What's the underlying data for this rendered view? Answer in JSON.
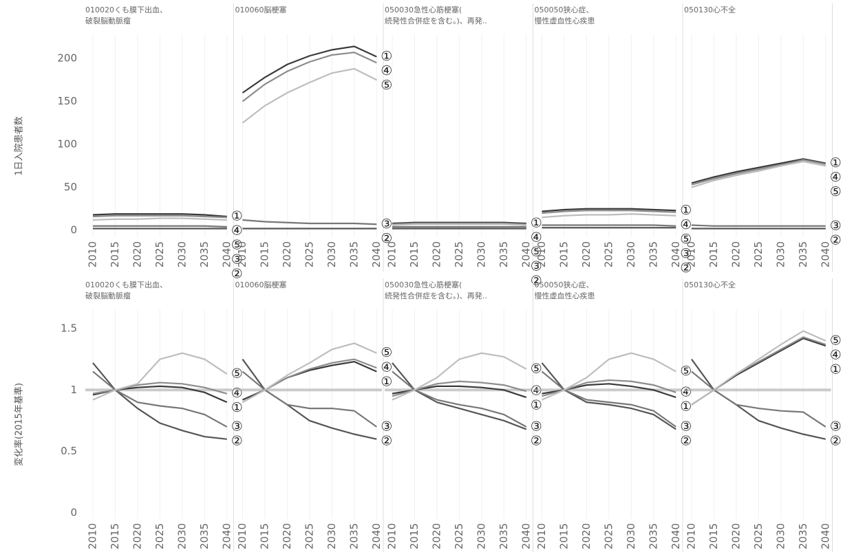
{
  "chart_data": [
    {
      "type": "line",
      "y_label": "1日入院患者数",
      "x": [
        2010,
        2015,
        2020,
        2025,
        2030,
        2035,
        2040
      ],
      "xlim": [
        2008,
        2041.5
      ],
      "xticks": [
        2010,
        2015,
        2020,
        2025,
        2030,
        2035,
        2040
      ],
      "ylim": [
        -8,
        220
      ],
      "yticks": [
        0,
        50,
        100,
        150,
        200
      ],
      "grid": true,
      "panels": [
        {
          "title_lines": [
            "010020くも膜下出血、",
            "破裂脳動脈瘤"
          ],
          "series": [
            {
              "name": "①",
              "color": "#3a3a3a",
              "values": [
                18,
                19,
                19,
                19,
                19,
                18,
                16
              ]
            },
            {
              "name": "②",
              "color": "#555555",
              "values": [
                2,
                2,
                2,
                2,
                2,
                2,
                2
              ]
            },
            {
              "name": "③",
              "color": "#777777",
              "values": [
                5,
                5,
                5,
                5,
                5,
                5,
                4
              ]
            },
            {
              "name": "④",
              "color": "#8c8c8c",
              "values": [
                16,
                17,
                17,
                17,
                17,
                16,
                15
              ]
            },
            {
              "name": "⑤",
              "color": "#bdbdbd",
              "values": [
                12,
                13,
                13,
                14,
                14,
                13,
                12
              ]
            }
          ]
        },
        {
          "title_lines": [
            "010060脳梗塞"
          ],
          "series": [
            {
              "name": "①",
              "color": "#3a3a3a",
              "values": [
                160,
                178,
                193,
                203,
                210,
                214,
                202
              ]
            },
            {
              "name": "②",
              "color": "#555555",
              "values": [
                2,
                2,
                2,
                2,
                2,
                2,
                2
              ]
            },
            {
              "name": "③",
              "color": "#777777",
              "values": [
                12,
                10,
                9,
                8,
                8,
                8,
                7
              ]
            },
            {
              "name": "④",
              "color": "#8c8c8c",
              "values": [
                150,
                170,
                185,
                196,
                204,
                207,
                195
              ]
            },
            {
              "name": "⑤",
              "color": "#bdbdbd",
              "values": [
                125,
                145,
                160,
                172,
                183,
                188,
                175
              ]
            }
          ]
        },
        {
          "title_lines": [
            "050030急性心筋梗塞(",
            "続発性合併症を含む。)、再発.."
          ],
          "series": [
            {
              "name": "①",
              "color": "#3a3a3a",
              "values": [
                8,
                9,
                9,
                9,
                9,
                9,
                8
              ]
            },
            {
              "name": "②",
              "color": "#555555",
              "values": [
                2,
                2,
                2,
                2,
                2,
                2,
                2
              ]
            },
            {
              "name": "③",
              "color": "#777777",
              "values": [
                4,
                4,
                4,
                4,
                4,
                4,
                4
              ]
            },
            {
              "name": "④",
              "color": "#8c8c8c",
              "values": [
                7,
                8,
                8,
                8,
                8,
                8,
                7
              ]
            },
            {
              "name": "⑤",
              "color": "#bdbdbd",
              "values": [
                6,
                7,
                7,
                7,
                7,
                7,
                6
              ]
            }
          ]
        },
        {
          "title_lines": [
            "050050狭心症、",
            "慢性虚血性心疾患"
          ],
          "series": [
            {
              "name": "①",
              "color": "#3a3a3a",
              "values": [
                22,
                24,
                25,
                25,
                25,
                24,
                23
              ]
            },
            {
              "name": "②",
              "color": "#555555",
              "values": [
                3,
                3,
                3,
                3,
                3,
                3,
                3
              ]
            },
            {
              "name": "③",
              "color": "#777777",
              "values": [
                6,
                6,
                6,
                6,
                6,
                6,
                5
              ]
            },
            {
              "name": "④",
              "color": "#8c8c8c",
              "values": [
                20,
                22,
                23,
                23,
                23,
                22,
                21
              ]
            },
            {
              "name": "⑤",
              "color": "#bdbdbd",
              "values": [
                15,
                17,
                18,
                18,
                19,
                18,
                17
              ]
            }
          ]
        },
        {
          "title_lines": [
            "050130心不全"
          ],
          "series": [
            {
              "name": "①",
              "color": "#3a3a3a",
              "values": [
                55,
                62,
                68,
                73,
                78,
                83,
                78
              ]
            },
            {
              "name": "②",
              "color": "#555555",
              "values": [
                2,
                2,
                2,
                2,
                2,
                2,
                2
              ]
            },
            {
              "name": "③",
              "color": "#777777",
              "values": [
                6,
                5,
                5,
                5,
                5,
                5,
                5
              ]
            },
            {
              "name": "④",
              "color": "#8c8c8c",
              "values": [
                53,
                60,
                66,
                71,
                76,
                82,
                77
              ]
            },
            {
              "name": "⑤",
              "color": "#bdbdbd",
              "values": [
                50,
                58,
                64,
                69,
                75,
                80,
                75
              ]
            }
          ]
        }
      ]
    },
    {
      "type": "line",
      "y_label": "変化率(2015年基準)",
      "x": [
        2010,
        2015,
        2020,
        2025,
        2030,
        2035,
        2040
      ],
      "xlim": [
        2008,
        2041.5
      ],
      "xticks": [
        2010,
        2015,
        2020,
        2025,
        2030,
        2035,
        2040
      ],
      "ylim": [
        -0.05,
        1.6
      ],
      "yticks": [
        0,
        0.5,
        1,
        1.5
      ],
      "grid": true,
      "reference_line": 1,
      "panels": [
        {
          "title_lines": [
            "010020くも膜下出血、",
            "破裂脳動脈瘤"
          ],
          "series": [
            {
              "name": "①",
              "color": "#3a3a3a",
              "values": [
                0.96,
                1,
                1.02,
                1.03,
                1.02,
                0.98,
                0.9
              ]
            },
            {
              "name": "②",
              "color": "#555555",
              "values": [
                1.22,
                1,
                0.85,
                0.73,
                0.67,
                0.62,
                0.6
              ]
            },
            {
              "name": "③",
              "color": "#777777",
              "values": [
                1.15,
                1,
                0.9,
                0.87,
                0.85,
                0.8,
                0.7
              ]
            },
            {
              "name": "④",
              "color": "#8c8c8c",
              "values": [
                0.97,
                1,
                1.04,
                1.06,
                1.05,
                1.02,
                0.97
              ]
            },
            {
              "name": "⑤",
              "color": "#bdbdbd",
              "values": [
                0.92,
                1,
                1.05,
                1.25,
                1.3,
                1.25,
                1.13
              ]
            }
          ]
        },
        {
          "title_lines": [
            "010060脳梗塞"
          ],
          "series": [
            {
              "name": "①",
              "color": "#3a3a3a",
              "values": [
                0.92,
                1,
                1.1,
                1.16,
                1.2,
                1.23,
                1.15
              ]
            },
            {
              "name": "②",
              "color": "#555555",
              "values": [
                1.25,
                1,
                0.88,
                0.75,
                0.69,
                0.64,
                0.6
              ]
            },
            {
              "name": "③",
              "color": "#777777",
              "values": [
                1.15,
                1,
                0.88,
                0.85,
                0.85,
                0.83,
                0.7
              ]
            },
            {
              "name": "④",
              "color": "#8c8c8c",
              "values": [
                0.9,
                1,
                1.1,
                1.17,
                1.22,
                1.25,
                1.18
              ]
            },
            {
              "name": "⑤",
              "color": "#bdbdbd",
              "values": [
                0.9,
                1,
                1.12,
                1.22,
                1.33,
                1.38,
                1.3
              ]
            }
          ]
        },
        {
          "title_lines": [
            "050030急性心筋梗塞(",
            "続発性合併症を含む。)、再発.."
          ],
          "series": [
            {
              "name": "①",
              "color": "#3a3a3a",
              "values": [
                0.97,
                1,
                1.03,
                1.03,
                1.02,
                1,
                0.94
              ]
            },
            {
              "name": "②",
              "color": "#555555",
              "values": [
                1.22,
                1,
                0.9,
                0.85,
                0.8,
                0.75,
                0.68
              ]
            },
            {
              "name": "③",
              "color": "#777777",
              "values": [
                1.15,
                1,
                0.92,
                0.88,
                0.85,
                0.8,
                0.7
              ]
            },
            {
              "name": "④",
              "color": "#8c8c8c",
              "values": [
                0.95,
                1,
                1.05,
                1.07,
                1.06,
                1.04,
                0.99
              ]
            },
            {
              "name": "⑤",
              "color": "#bdbdbd",
              "values": [
                0.92,
                1,
                1.1,
                1.25,
                1.3,
                1.27,
                1.17
              ]
            }
          ]
        },
        {
          "title_lines": [
            "050050狭心症、",
            "慢性虚血性心疾患"
          ],
          "series": [
            {
              "name": "①",
              "color": "#3a3a3a",
              "values": [
                0.97,
                1,
                1.04,
                1.05,
                1.03,
                1,
                0.94
              ]
            },
            {
              "name": "②",
              "color": "#555555",
              "values": [
                1.22,
                1,
                0.9,
                0.88,
                0.85,
                0.8,
                0.68
              ]
            },
            {
              "name": "③",
              "color": "#777777",
              "values": [
                1.15,
                1,
                0.92,
                0.9,
                0.88,
                0.83,
                0.7
              ]
            },
            {
              "name": "④",
              "color": "#8c8c8c",
              "values": [
                0.95,
                1,
                1.06,
                1.08,
                1.07,
                1.04,
                0.98
              ]
            },
            {
              "name": "⑤",
              "color": "#bdbdbd",
              "values": [
                0.92,
                1,
                1.1,
                1.25,
                1.3,
                1.25,
                1.15
              ]
            }
          ]
        },
        {
          "title_lines": [
            "050130心不全"
          ],
          "series": [
            {
              "name": "①",
              "color": "#3a3a3a",
              "values": [
                0.88,
                1,
                1.12,
                1.22,
                1.32,
                1.42,
                1.36
              ]
            },
            {
              "name": "②",
              "color": "#555555",
              "values": [
                1.25,
                1,
                0.88,
                0.75,
                0.69,
                0.64,
                0.6
              ]
            },
            {
              "name": "③",
              "color": "#777777",
              "values": [
                1.15,
                1,
                0.88,
                0.85,
                0.83,
                0.82,
                0.7
              ]
            },
            {
              "name": "④",
              "color": "#8c8c8c",
              "values": [
                0.88,
                1,
                1.13,
                1.23,
                1.33,
                1.43,
                1.37
              ]
            },
            {
              "name": "⑤",
              "color": "#bdbdbd",
              "values": [
                0.88,
                1,
                1.13,
                1.25,
                1.37,
                1.48,
                1.4
              ]
            }
          ]
        }
      ]
    }
  ]
}
